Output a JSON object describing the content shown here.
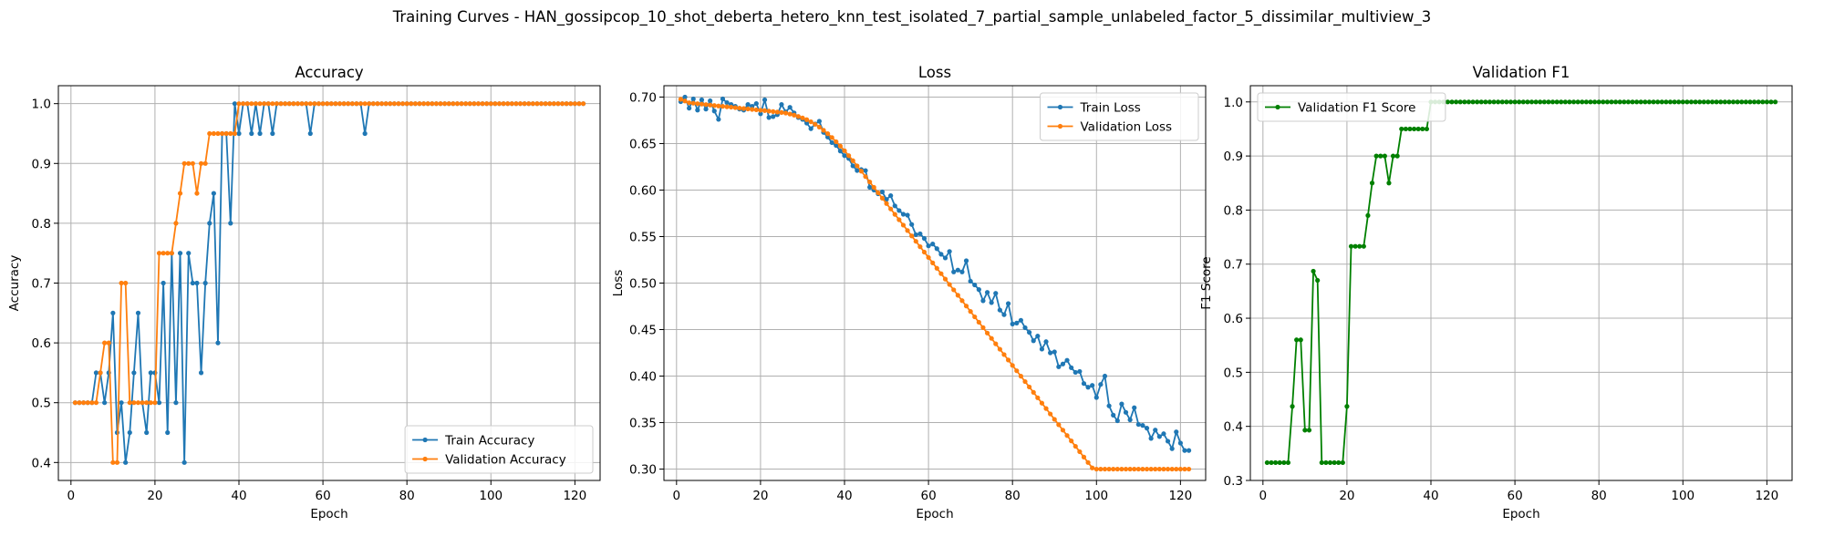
{
  "suptitle": "Training Curves - HAN_gossipcop_10_shot_deberta_hetero_knn_test_isolated_7_partial_sample_unlabeled_factor_5_dissimilar_multiview_3",
  "colors": {
    "train": "#1f77b4",
    "validation": "#ff7f0e",
    "f1": "#008000",
    "grid": "#b0b0b0"
  },
  "chart_data": [
    {
      "type": "line",
      "title": "Accuracy",
      "xlabel": "Epoch",
      "ylabel": "Accuracy",
      "xlim": [
        -3,
        126
      ],
      "ylim": [
        0.37,
        1.03
      ],
      "xticks": [
        0,
        20,
        40,
        60,
        80,
        100,
        120
      ],
      "yticks": [
        0.4,
        0.5,
        0.6,
        0.7,
        0.8,
        0.9,
        1.0
      ],
      "ytick_labels": [
        "0.4",
        "0.5",
        "0.6",
        "0.7",
        "0.8",
        "0.9",
        "1.0"
      ],
      "grid": true,
      "legend": "lower right",
      "series": [
        {
          "name": "Train Accuracy",
          "color": "#1f77b4",
          "x_start": 1,
          "values": [
            0.5,
            0.5,
            0.5,
            0.5,
            0.5,
            0.55,
            0.55,
            0.5,
            0.55,
            0.65,
            0.45,
            0.5,
            0.4,
            0.45,
            0.55,
            0.65,
            0.5,
            0.45,
            0.55,
            0.55,
            0.5,
            0.7,
            0.45,
            0.75,
            0.5,
            0.75,
            0.4,
            0.75,
            0.7,
            0.7,
            0.55,
            0.7,
            0.8,
            0.85,
            0.6,
            0.95,
            0.95,
            0.8,
            1.0,
            0.95,
            1.0,
            1.0,
            0.95,
            1.0,
            0.95,
            1.0,
            1.0,
            0.95,
            1.0,
            1.0,
            1.0,
            1.0,
            1.0,
            1.0,
            1.0,
            1.0,
            0.95,
            1.0,
            1.0,
            1.0,
            1.0,
            1.0,
            1.0,
            1.0,
            1.0,
            1.0,
            1.0,
            1.0,
            1.0,
            0.95,
            1.0,
            1.0,
            1.0,
            1.0,
            1.0,
            1.0,
            1.0,
            1.0,
            1.0,
            1.0,
            1.0,
            1.0,
            1.0,
            1.0,
            1.0,
            1.0,
            1.0,
            1.0,
            1.0,
            1.0,
            1.0,
            1.0,
            1.0,
            1.0,
            1.0,
            1.0,
            1.0,
            1.0,
            1.0,
            1.0,
            1.0,
            1.0,
            1.0,
            1.0,
            1.0,
            1.0,
            1.0,
            1.0,
            1.0,
            1.0,
            1.0,
            1.0,
            1.0,
            1.0,
            1.0,
            1.0,
            1.0,
            1.0,
            1.0,
            1.0,
            1.0,
            1.0
          ]
        },
        {
          "name": "Validation Accuracy",
          "color": "#ff7f0e",
          "x_start": 1,
          "values": [
            0.5,
            0.5,
            0.5,
            0.5,
            0.5,
            0.5,
            0.55,
            0.6,
            0.6,
            0.4,
            0.4,
            0.7,
            0.7,
            0.5,
            0.5,
            0.5,
            0.5,
            0.5,
            0.5,
            0.5,
            0.75,
            0.75,
            0.75,
            0.75,
            0.8,
            0.85,
            0.9,
            0.9,
            0.9,
            0.85,
            0.9,
            0.9,
            0.95,
            0.95,
            0.95,
            0.95,
            0.95,
            0.95,
            0.95,
            1.0,
            1.0,
            1.0,
            1.0,
            1.0,
            1.0,
            1.0,
            1.0,
            1.0,
            1.0,
            1.0,
            1.0,
            1.0,
            1.0,
            1.0,
            1.0,
            1.0,
            1.0,
            1.0,
            1.0,
            1.0,
            1.0,
            1.0,
            1.0,
            1.0,
            1.0,
            1.0,
            1.0,
            1.0,
            1.0,
            1.0,
            1.0,
            1.0,
            1.0,
            1.0,
            1.0,
            1.0,
            1.0,
            1.0,
            1.0,
            1.0,
            1.0,
            1.0,
            1.0,
            1.0,
            1.0,
            1.0,
            1.0,
            1.0,
            1.0,
            1.0,
            1.0,
            1.0,
            1.0,
            1.0,
            1.0,
            1.0,
            1.0,
            1.0,
            1.0,
            1.0,
            1.0,
            1.0,
            1.0,
            1.0,
            1.0,
            1.0,
            1.0,
            1.0,
            1.0,
            1.0,
            1.0,
            1.0,
            1.0,
            1.0,
            1.0,
            1.0,
            1.0,
            1.0,
            1.0,
            1.0,
            1.0,
            1.0
          ]
        }
      ]
    },
    {
      "type": "line",
      "title": "Loss",
      "xlabel": "Epoch",
      "ylabel": "Loss",
      "xlim": [
        -3,
        126
      ],
      "ylim": [
        0.2878,
        0.7122
      ],
      "xticks": [
        0,
        20,
        40,
        60,
        80,
        100,
        120
      ],
      "yticks": [
        0.3,
        0.35,
        0.4,
        0.45,
        0.5,
        0.55,
        0.6,
        0.65,
        0.7
      ],
      "ytick_labels": [
        "0.30",
        "0.35",
        "0.40",
        "0.45",
        "0.50",
        "0.55",
        "0.60",
        "0.65",
        "0.70"
      ],
      "grid": true,
      "legend": "upper right",
      "series": [
        {
          "name": "Train Loss",
          "color": "#1f77b4",
          "x_start": 1,
          "values": [
            0.695,
            0.7,
            0.688,
            0.698,
            0.686,
            0.697,
            0.687,
            0.696,
            0.685,
            0.676,
            0.698,
            0.694,
            0.692,
            0.69,
            0.687,
            0.686,
            0.692,
            0.69,
            0.693,
            0.682,
            0.697,
            0.678,
            0.679,
            0.681,
            0.692,
            0.684,
            0.689,
            0.683,
            0.678,
            0.676,
            0.672,
            0.666,
            0.671,
            0.674,
            0.662,
            0.657,
            0.651,
            0.648,
            0.642,
            0.637,
            0.634,
            0.626,
            0.621,
            0.622,
            0.621,
            0.603,
            0.6,
            0.596,
            0.598,
            0.59,
            0.594,
            0.583,
            0.578,
            0.574,
            0.573,
            0.563,
            0.552,
            0.553,
            0.548,
            0.54,
            0.542,
            0.537,
            0.531,
            0.527,
            0.534,
            0.512,
            0.514,
            0.512,
            0.524,
            0.502,
            0.498,
            0.493,
            0.481,
            0.49,
            0.479,
            0.489,
            0.471,
            0.466,
            0.478,
            0.456,
            0.457,
            0.46,
            0.452,
            0.447,
            0.438,
            0.443,
            0.429,
            0.437,
            0.425,
            0.426,
            0.41,
            0.413,
            0.417,
            0.409,
            0.404,
            0.405,
            0.392,
            0.388,
            0.39,
            0.377,
            0.391,
            0.4,
            0.368,
            0.358,
            0.352,
            0.37,
            0.361,
            0.353,
            0.366,
            0.348,
            0.347,
            0.344,
            0.333,
            0.342,
            0.335,
            0.338,
            0.33,
            0.322,
            0.34,
            0.328,
            0.32,
            0.32
          ]
        },
        {
          "name": "Validation Loss",
          "color": "#ff7f0e",
          "x_start": 1,
          "values": [
            0.6976,
            0.6958,
            0.6939,
            0.6934,
            0.6929,
            0.6924,
            0.6919,
            0.6914,
            0.6909,
            0.6904,
            0.69,
            0.6895,
            0.6891,
            0.6886,
            0.6881,
            0.6877,
            0.6872,
            0.6867,
            0.6863,
            0.6858,
            0.6854,
            0.6849,
            0.6844,
            0.6839,
            0.6834,
            0.6828,
            0.6817,
            0.6806,
            0.6791,
            0.6776,
            0.6757,
            0.6734,
            0.6707,
            0.6677,
            0.6643,
            0.6606,
            0.6565,
            0.652,
            0.6473,
            0.6423,
            0.637,
            0.6316,
            0.626,
            0.6203,
            0.6145,
            0.6087,
            0.6029,
            0.5971,
            0.5913,
            0.5855,
            0.5797,
            0.5739,
            0.5681,
            0.5623,
            0.5565,
            0.5507,
            0.5449,
            0.5391,
            0.5333,
            0.5275,
            0.5217,
            0.5159,
            0.5101,
            0.5043,
            0.4985,
            0.4927,
            0.4869,
            0.4811,
            0.4753,
            0.4695,
            0.4637,
            0.4579,
            0.4521,
            0.4463,
            0.4405,
            0.4347,
            0.4289,
            0.4231,
            0.4173,
            0.4115,
            0.4057,
            0.3999,
            0.3941,
            0.3883,
            0.3825,
            0.3767,
            0.3709,
            0.3651,
            0.3593,
            0.3535,
            0.3477,
            0.3419,
            0.3361,
            0.3303,
            0.3245,
            0.3187,
            0.3129,
            0.3071,
            0.3013,
            0.3,
            0.3,
            0.3,
            0.3,
            0.3,
            0.3,
            0.3,
            0.3,
            0.3,
            0.3,
            0.3,
            0.3,
            0.3,
            0.3,
            0.3,
            0.3,
            0.3,
            0.3,
            0.3,
            0.3,
            0.3,
            0.3,
            0.3
          ]
        }
      ]
    },
    {
      "type": "line",
      "title": "Validation F1",
      "xlabel": "Epoch",
      "ylabel": "F1 Score",
      "xlim": [
        -3,
        126
      ],
      "ylim": [
        0.3,
        1.03
      ],
      "xticks": [
        0,
        20,
        40,
        60,
        80,
        100,
        120
      ],
      "yticks": [
        0.3,
        0.4,
        0.5,
        0.6,
        0.7,
        0.8,
        0.9,
        1.0
      ],
      "ytick_labels": [
        "0.3",
        "0.4",
        "0.5",
        "0.6",
        "0.7",
        "0.8",
        "0.9",
        "1.0"
      ],
      "grid": true,
      "legend": "upper left",
      "series": [
        {
          "name": "Validation F1 Score",
          "color": "#008000",
          "x_start": 1,
          "values": [
            0.333,
            0.333,
            0.333,
            0.333,
            0.333,
            0.333,
            0.437,
            0.56,
            0.56,
            0.393,
            0.393,
            0.687,
            0.67,
            0.333,
            0.333,
            0.333,
            0.333,
            0.333,
            0.333,
            0.437,
            0.733,
            0.733,
            0.733,
            0.733,
            0.79,
            0.85,
            0.9,
            0.9,
            0.9,
            0.85,
            0.9,
            0.9,
            0.95,
            0.95,
            0.95,
            0.95,
            0.95,
            0.95,
            0.95,
            1.0,
            1.0,
            1.0,
            1.0,
            1.0,
            1.0,
            1.0,
            1.0,
            1.0,
            1.0,
            1.0,
            1.0,
            1.0,
            1.0,
            1.0,
            1.0,
            1.0,
            1.0,
            1.0,
            1.0,
            1.0,
            1.0,
            1.0,
            1.0,
            1.0,
            1.0,
            1.0,
            1.0,
            1.0,
            1.0,
            1.0,
            1.0,
            1.0,
            1.0,
            1.0,
            1.0,
            1.0,
            1.0,
            1.0,
            1.0,
            1.0,
            1.0,
            1.0,
            1.0,
            1.0,
            1.0,
            1.0,
            1.0,
            1.0,
            1.0,
            1.0,
            1.0,
            1.0,
            1.0,
            1.0,
            1.0,
            1.0,
            1.0,
            1.0,
            1.0,
            1.0,
            1.0,
            1.0,
            1.0,
            1.0,
            1.0,
            1.0,
            1.0,
            1.0,
            1.0,
            1.0,
            1.0,
            1.0,
            1.0,
            1.0,
            1.0,
            1.0,
            1.0,
            1.0,
            1.0,
            1.0,
            1.0,
            1.0
          ]
        }
      ]
    }
  ]
}
